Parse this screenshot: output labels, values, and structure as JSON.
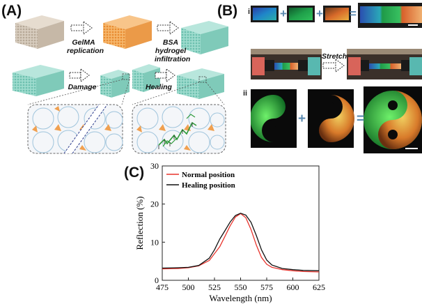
{
  "panels": {
    "a": {
      "label": "(A)",
      "step1": "GelMA replication",
      "step2": "BSA hydrogel infiltration",
      "step3": "Damage",
      "step4": "Healing"
    },
    "b": {
      "label": "(B)",
      "row_i": "i",
      "row_ii": "ii",
      "stretch": "Stretch",
      "plus": "+",
      "equals": "="
    },
    "c": {
      "label": "(C)"
    }
  },
  "colors": {
    "normal": "#e8332c",
    "healing": "#111111",
    "opal_orange": "#f0a050",
    "opal_teal": "#86d2c2",
    "opal_beige": "#cfc3b5"
  },
  "chart_data": {
    "type": "line",
    "xlabel": "Wavelength (nm)",
    "ylabel": "Reflection (%)",
    "xlim": [
      475,
      625
    ],
    "ylim": [
      0,
      30
    ],
    "xticks": [
      475,
      500,
      525,
      550,
      575,
      600,
      625
    ],
    "yticks": [
      0,
      10,
      20,
      30
    ],
    "legend_position": "top-left",
    "series": [
      {
        "name": "Normal position",
        "color": "#e8332c",
        "x": [
          475,
          490,
          500,
          510,
          520,
          530,
          535,
          540,
          545,
          550,
          555,
          560,
          565,
          570,
          575,
          580,
          590,
          600,
          610,
          625
        ],
        "y": [
          3.0,
          3.1,
          3.3,
          3.8,
          5.2,
          8.8,
          11.5,
          14.3,
          16.6,
          17.5,
          16.4,
          13.3,
          9.3,
          6.0,
          4.2,
          3.4,
          2.8,
          2.5,
          2.3,
          2.2
        ]
      },
      {
        "name": "Healing position",
        "color": "#111111",
        "x": [
          475,
          490,
          500,
          510,
          520,
          525,
          530,
          535,
          540,
          545,
          550,
          555,
          560,
          565,
          570,
          575,
          580,
          590,
          600,
          610,
          625
        ],
        "y": [
          3.2,
          3.3,
          3.4,
          3.9,
          5.8,
          8.0,
          10.8,
          13.0,
          15.3,
          17.0,
          17.6,
          17.1,
          15.2,
          11.8,
          8.0,
          5.3,
          4.0,
          3.1,
          2.8,
          2.6,
          2.5
        ]
      }
    ]
  }
}
